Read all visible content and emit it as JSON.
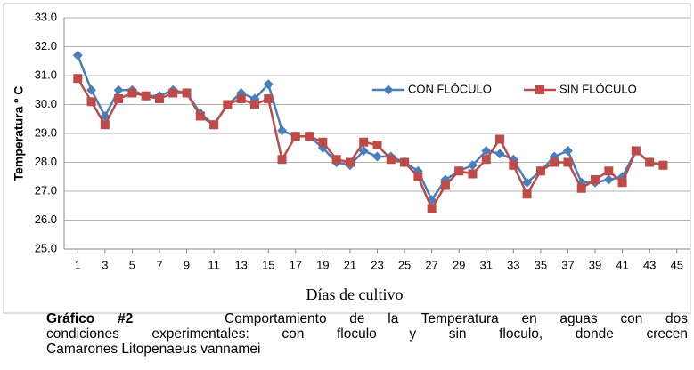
{
  "chart_data": {
    "type": "line",
    "y_label": "Temperatura º C",
    "x_label": "Días de cultivo",
    "caption_label": "Gráfico #2",
    "caption_lines": [
      "Comportamiento de la Temperatura en aguas con dos",
      "condiciones experimentales:  con floculo y sin floculo, donde crecen",
      "Camarones Litopenaeus vannamei"
    ],
    "x": [
      1,
      2,
      3,
      4,
      5,
      6,
      7,
      8,
      9,
      10,
      11,
      12,
      13,
      14,
      15,
      16,
      17,
      18,
      19,
      20,
      21,
      22,
      23,
      24,
      25,
      26,
      27,
      28,
      29,
      30,
      31,
      32,
      33,
      34,
      35,
      36,
      37,
      38,
      39,
      40,
      41,
      42,
      43,
      44
    ],
    "series": [
      {
        "name": "CON FLÓCULO",
        "color": "#4a7ebb",
        "marker": "diamond",
        "values": [
          31.7,
          30.5,
          29.6,
          30.5,
          30.5,
          30.3,
          30.3,
          30.5,
          30.4,
          29.7,
          29.3,
          30.0,
          30.4,
          30.2,
          30.7,
          29.1,
          28.9,
          28.9,
          28.5,
          28.0,
          27.9,
          28.4,
          28.2,
          28.2,
          28.0,
          27.7,
          26.7,
          27.4,
          27.7,
          27.9,
          28.4,
          28.3,
          28.1,
          27.3,
          27.7,
          28.2,
          28.4,
          27.3,
          27.3,
          27.4,
          27.5,
          28.4,
          28.0,
          27.9
        ]
      },
      {
        "name": "SIN FLÓCULO",
        "color": "#be4b48",
        "marker": "square",
        "values": [
          30.9,
          30.1,
          29.3,
          30.2,
          30.4,
          30.3,
          30.2,
          30.4,
          30.4,
          29.6,
          29.3,
          30.0,
          30.2,
          30.0,
          30.2,
          28.1,
          28.9,
          28.9,
          28.7,
          28.1,
          28.0,
          28.7,
          28.6,
          28.1,
          28.0,
          27.5,
          26.4,
          27.2,
          27.7,
          27.6,
          28.1,
          28.8,
          27.9,
          26.9,
          27.7,
          28.0,
          28.0,
          27.1,
          27.4,
          27.7,
          27.3,
          28.4,
          28.0,
          27.9
        ]
      }
    ],
    "xlim": [
      0,
      46
    ],
    "xticks": [
      1,
      3,
      5,
      7,
      9,
      11,
      13,
      15,
      17,
      19,
      21,
      23,
      25,
      27,
      29,
      31,
      33,
      35,
      37,
      39,
      41,
      43,
      45
    ],
    "ylim": [
      25,
      33
    ],
    "yticks": [
      {
        "value": 25,
        "label": "25.0"
      },
      {
        "value": 26,
        "label": "26.0"
      },
      {
        "value": 27,
        "label": "27.0"
      },
      {
        "value": 28,
        "label": "28.0"
      },
      {
        "value": 29,
        "label": "29.0"
      },
      {
        "value": 30,
        "label": "30.0"
      },
      {
        "value": 31,
        "label": "31.0"
      },
      {
        "value": 32,
        "label": "32.0"
      },
      {
        "value": 33,
        "label": "33.0"
      }
    ],
    "grid": true,
    "legend": "top-right"
  }
}
